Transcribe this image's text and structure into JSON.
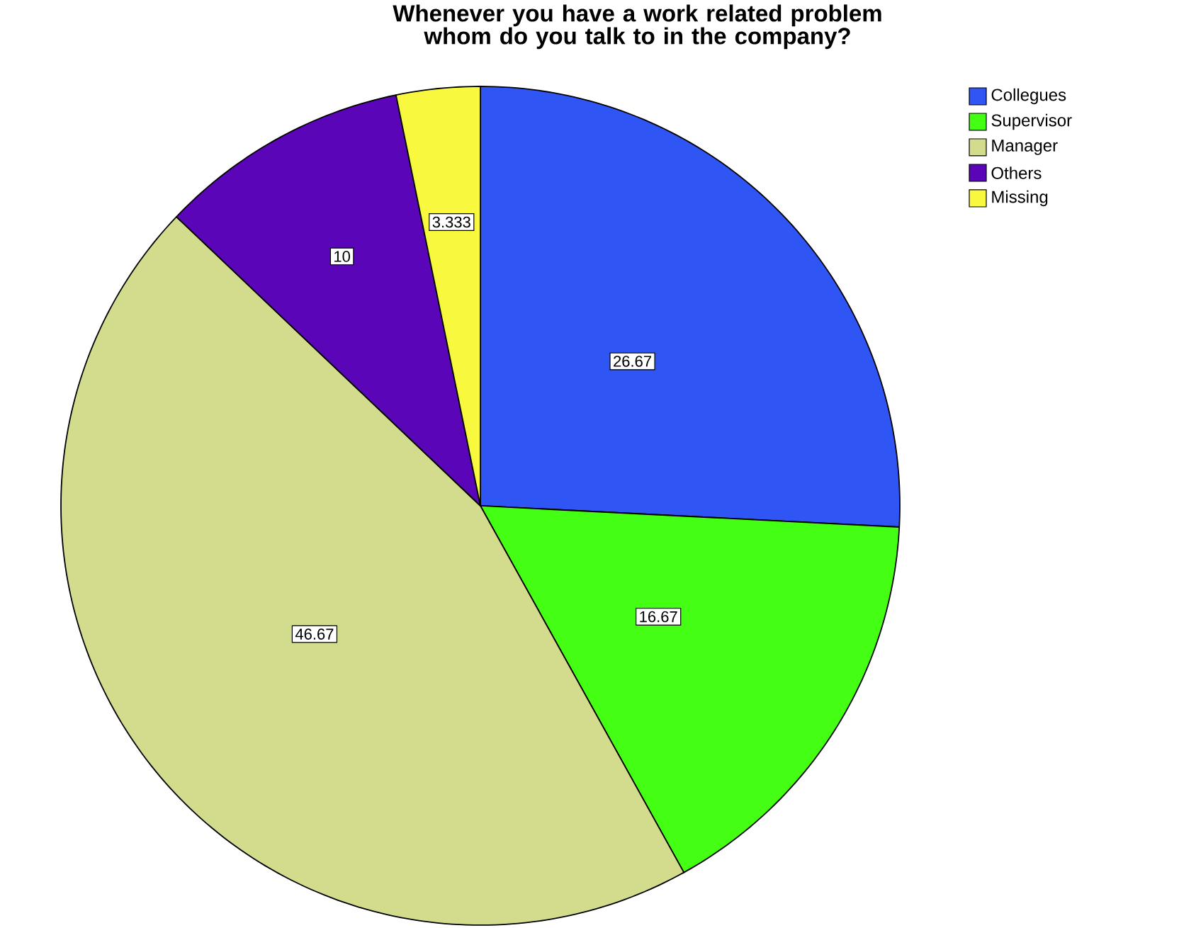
{
  "chart_data": {
    "type": "pie",
    "title": "Whenever you have a work related problem whom do you talk to in the company?",
    "categories": [
      "Collegues",
      "Supervisor",
      "Manager",
      "Others",
      "Missing"
    ],
    "values": [
      26.67,
      16.67,
      46.67,
      10,
      3.333
    ],
    "colors": [
      "#2f55f5",
      "#44ff14",
      "#d3db8c",
      "#5a06b8",
      "#f8f83e"
    ],
    "data_labels": true,
    "legend": "top right"
  }
}
